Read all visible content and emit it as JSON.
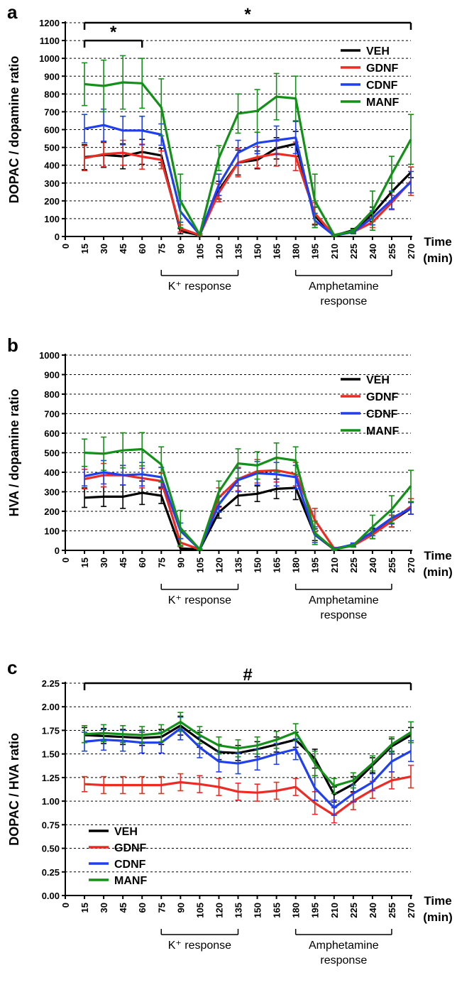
{
  "chart_data": [
    {
      "panel": "a",
      "type": "line",
      "ylabel": "DOPAC / dopamine ratio",
      "xlabel": "Time\n(min)",
      "x": [
        15,
        30,
        45,
        60,
        75,
        90,
        105,
        120,
        135,
        150,
        165,
        180,
        195,
        210,
        225,
        240,
        255,
        270
      ],
      "xticks": [
        0,
        15,
        30,
        45,
        60,
        75,
        90,
        105,
        120,
        135,
        150,
        165,
        180,
        195,
        210,
        225,
        240,
        255,
        270
      ],
      "ylim": [
        0,
        1200
      ],
      "yticks": [
        0,
        100,
        200,
        300,
        400,
        500,
        600,
        700,
        800,
        900,
        1000,
        1100,
        1200
      ],
      "grid": true,
      "legend_position": "top-right",
      "series": [
        {
          "name": "VEH",
          "color": "#000000",
          "values": [
            445,
            458,
            450,
            475,
            455,
            30,
            8,
            260,
            415,
            430,
            495,
            520,
            115,
            5,
            35,
            125,
            250,
            360
          ],
          "errors": [
            70,
            70,
            70,
            70,
            40,
            15,
            5,
            50,
            70,
            50,
            60,
            70,
            50,
            3,
            10,
            40,
            50,
            30
          ]
        },
        {
          "name": "GDNF",
          "color": "#ee2a24",
          "values": [
            440,
            462,
            470,
            448,
            430,
            45,
            8,
            245,
            415,
            445,
            465,
            450,
            130,
            5,
            25,
            80,
            190,
            310
          ],
          "errors": [
            70,
            70,
            70,
            70,
            50,
            20,
            5,
            50,
            80,
            60,
            70,
            80,
            60,
            3,
            10,
            30,
            40,
            80
          ]
        },
        {
          "name": "CDNF",
          "color": "#1f3ff0",
          "values": [
            605,
            625,
            595,
            595,
            572,
            140,
            10,
            290,
            470,
            525,
            540,
            555,
            90,
            5,
            25,
            105,
            205,
            305
          ],
          "errors": [
            80,
            90,
            80,
            80,
            60,
            60,
            5,
            60,
            70,
            60,
            80,
            90,
            40,
            3,
            10,
            40,
            50,
            60
          ]
        },
        {
          "name": "MANF",
          "color": "#139018",
          "values": [
            855,
            845,
            865,
            860,
            725,
            200,
            10,
            440,
            690,
            705,
            785,
            775,
            200,
            8,
            30,
            145,
            350,
            545
          ],
          "errors": [
            120,
            145,
            150,
            140,
            160,
            150,
            5,
            70,
            110,
            120,
            130,
            125,
            150,
            5,
            10,
            110,
            100,
            140
          ]
        }
      ],
      "brackets": [
        {
          "from": 15,
          "to": 270,
          "level": 1200,
          "label": "*"
        },
        {
          "from": 15,
          "to": 60,
          "level": 1100,
          "label": "*"
        }
      ],
      "annotations": [
        {
          "from": 75,
          "to": 135,
          "label": "K⁺ response"
        },
        {
          "from": 180,
          "to": 255,
          "label": "Amphetamine\nresponse"
        }
      ]
    },
    {
      "panel": "b",
      "type": "line",
      "ylabel": "HVA / dopamine ratio",
      "xlabel": "Time\n(min)",
      "x": [
        15,
        30,
        45,
        60,
        75,
        90,
        105,
        120,
        135,
        150,
        165,
        180,
        195,
        210,
        225,
        240,
        255,
        270
      ],
      "xticks": [
        0,
        15,
        30,
        45,
        60,
        75,
        90,
        105,
        120,
        135,
        150,
        165,
        180,
        195,
        210,
        225,
        240,
        255,
        270
      ],
      "ylim": [
        0,
        1000
      ],
      "yticks": [
        0,
        100,
        200,
        300,
        400,
        500,
        600,
        700,
        800,
        900,
        1000
      ],
      "grid": true,
      "legend_position": "top-right",
      "series": [
        {
          "name": "VEH",
          "color": "#000000",
          "values": [
            270,
            275,
            275,
            295,
            280,
            10,
            5,
            195,
            280,
            290,
            315,
            320,
            80,
            5,
            25,
            85,
            150,
            215
          ],
          "errors": [
            50,
            50,
            60,
            60,
            40,
            10,
            3,
            30,
            50,
            40,
            50,
            60,
            30,
            3,
            8,
            25,
            30,
            30
          ]
        },
        {
          "name": "GDNF",
          "color": "#ee2a24",
          "values": [
            365,
            385,
            385,
            370,
            355,
            40,
            5,
            270,
            365,
            405,
            410,
            390,
            155,
            10,
            25,
            80,
            150,
            225
          ],
          "errors": [
            50,
            60,
            50,
            50,
            40,
            20,
            3,
            50,
            60,
            60,
            60,
            60,
            60,
            5,
            8,
            20,
            30,
            40
          ]
        },
        {
          "name": "CDNF",
          "color": "#1f3ff0",
          "values": [
            380,
            400,
            385,
            390,
            375,
            100,
            5,
            235,
            360,
            395,
            390,
            375,
            80,
            8,
            30,
            95,
            165,
            215
          ],
          "errors": [
            50,
            60,
            50,
            60,
            50,
            40,
            3,
            40,
            60,
            60,
            60,
            60,
            40,
            5,
            8,
            20,
            30,
            30
          ]
        },
        {
          "name": "MANF",
          "color": "#139018",
          "values": [
            500,
            495,
            512,
            518,
            440,
            115,
            5,
            300,
            445,
            435,
            475,
            460,
            90,
            5,
            25,
            120,
            210,
            330
          ],
          "errors": [
            70,
            85,
            90,
            85,
            90,
            90,
            3,
            55,
            75,
            70,
            75,
            70,
            60,
            5,
            8,
            60,
            70,
            80
          ]
        }
      ],
      "brackets": [],
      "annotations": [
        {
          "from": 75,
          "to": 135,
          "label": "K⁺ response"
        },
        {
          "from": 180,
          "to": 255,
          "label": "Amphetamine\nresponse"
        }
      ]
    },
    {
      "panel": "c",
      "type": "line",
      "ylabel": "DOPAC / HVA ratio",
      "xlabel": "Time\n(min)",
      "x": [
        15,
        30,
        45,
        60,
        75,
        90,
        105,
        120,
        135,
        150,
        165,
        180,
        195,
        210,
        225,
        240,
        255,
        270
      ],
      "xticks": [
        0,
        15,
        30,
        45,
        60,
        75,
        90,
        105,
        120,
        135,
        150,
        165,
        180,
        195,
        210,
        225,
        240,
        255,
        270
      ],
      "ylim": [
        0,
        2.25
      ],
      "yticks": [
        "0.00",
        "0.25",
        "0.50",
        "0.75",
        "1.00",
        "1.25",
        "1.50",
        "1.75",
        "2.00",
        "2.25"
      ],
      "grid": true,
      "legend_position": "bottom-left",
      "series": [
        {
          "name": "VEH",
          "color": "#000000",
          "values": [
            1.7,
            1.69,
            1.68,
            1.67,
            1.68,
            1.8,
            1.65,
            1.52,
            1.51,
            1.55,
            1.6,
            1.65,
            1.45,
            1.07,
            1.18,
            1.38,
            1.58,
            1.7
          ],
          "errors": [
            0.08,
            0.08,
            0.08,
            0.08,
            0.08,
            0.1,
            0.08,
            0.08,
            0.08,
            0.08,
            0.08,
            0.08,
            0.1,
            0.08,
            0.08,
            0.08,
            0.08,
            0.08
          ]
        },
        {
          "name": "GDNF",
          "color": "#ee2a24",
          "values": [
            1.18,
            1.17,
            1.17,
            1.17,
            1.17,
            1.2,
            1.18,
            1.15,
            1.1,
            1.09,
            1.11,
            1.15,
            0.98,
            0.85,
            1.0,
            1.12,
            1.22,
            1.26
          ],
          "errors": [
            0.08,
            0.09,
            0.09,
            0.09,
            0.09,
            0.09,
            0.09,
            0.09,
            0.09,
            0.09,
            0.09,
            0.09,
            0.12,
            0.08,
            0.09,
            0.09,
            0.09,
            0.12
          ]
        },
        {
          "name": "CDNF",
          "color": "#1f3ff0",
          "values": [
            1.63,
            1.65,
            1.64,
            1.62,
            1.62,
            1.77,
            1.57,
            1.42,
            1.4,
            1.44,
            1.5,
            1.55,
            1.14,
            0.93,
            1.08,
            1.2,
            1.42,
            1.53
          ],
          "errors": [
            0.1,
            0.11,
            0.11,
            0.11,
            0.11,
            0.12,
            0.11,
            0.11,
            0.11,
            0.11,
            0.11,
            0.11,
            0.13,
            0.08,
            0.09,
            0.09,
            0.11,
            0.11
          ]
        },
        {
          "name": "MANF",
          "color": "#139018",
          "values": [
            1.71,
            1.72,
            1.71,
            1.7,
            1.72,
            1.84,
            1.7,
            1.59,
            1.56,
            1.59,
            1.65,
            1.73,
            1.4,
            1.16,
            1.22,
            1.4,
            1.6,
            1.73
          ],
          "errors": [
            0.09,
            0.09,
            0.09,
            0.09,
            0.09,
            0.1,
            0.09,
            0.09,
            0.09,
            0.09,
            0.09,
            0.09,
            0.13,
            0.08,
            0.08,
            0.08,
            0.08,
            0.11
          ]
        }
      ],
      "brackets": [
        {
          "from": 15,
          "to": 270,
          "level": 2.25,
          "label": "#"
        }
      ],
      "annotations": [
        {
          "from": 75,
          "to": 135,
          "label": "K⁺ response"
        },
        {
          "from": 180,
          "to": 255,
          "label": "Amphetamine\nresponse"
        }
      ]
    }
  ]
}
